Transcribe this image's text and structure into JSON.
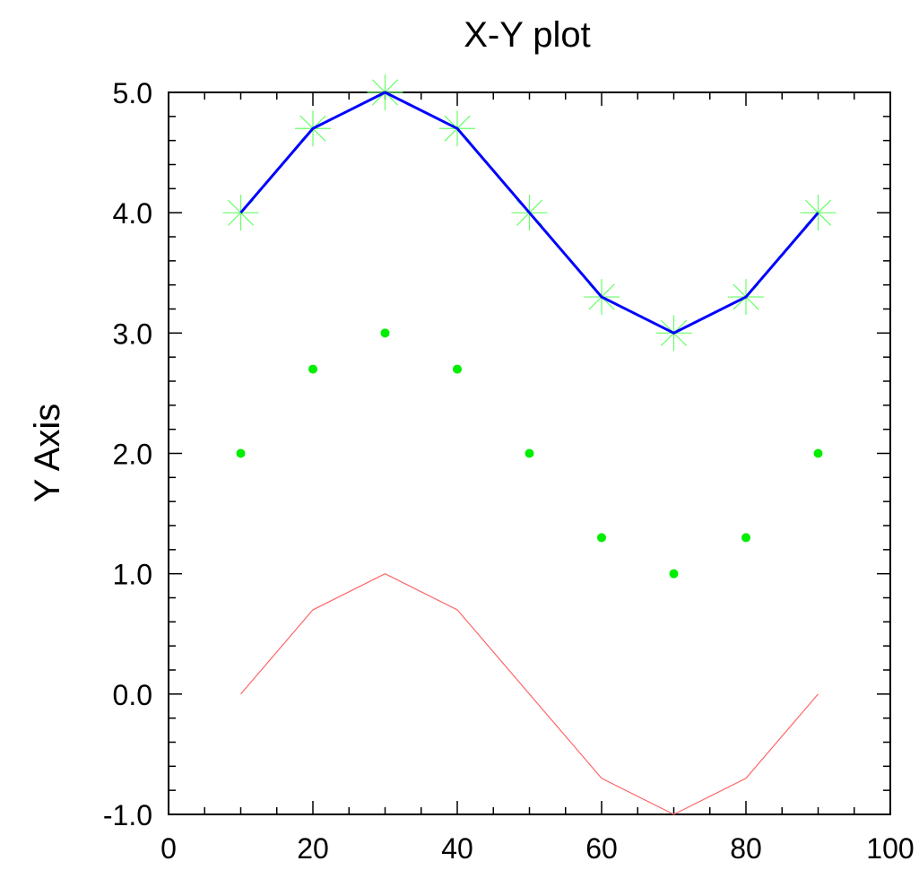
{
  "chart_data": {
    "type": "line",
    "title": "X-Y plot",
    "xlabel": "",
    "ylabel": "Y Axis",
    "xlim": [
      0,
      100
    ],
    "ylim": [
      -1.0,
      5.0
    ],
    "xticks": [
      0,
      20,
      40,
      60,
      80,
      100
    ],
    "xtick_labels": [
      "0",
      "20",
      "40",
      "60",
      "80",
      "100"
    ],
    "yticks": [
      -1.0,
      0.0,
      1.0,
      2.0,
      3.0,
      4.0,
      5.0
    ],
    "ytick_labels": [
      "-1.0",
      "0.0",
      "1.0",
      "2.0",
      "3.0",
      "4.0",
      "5.0"
    ],
    "grid": false,
    "x": [
      10,
      20,
      30,
      40,
      50,
      60,
      70,
      80,
      90
    ],
    "series": [
      {
        "values": [
          4.0,
          4.7,
          5.0,
          4.7,
          4.0,
          3.3,
          3.0,
          3.3,
          4.0
        ],
        "style": "line-with-asterisk-markers",
        "color": "#0000ff",
        "marker_color": "#66ff66"
      },
      {
        "values": [
          2.0,
          2.7,
          3.0,
          2.7,
          2.0,
          1.3,
          1.0,
          1.3,
          2.0
        ],
        "style": "dots",
        "color": "#00ee00"
      },
      {
        "values": [
          0.0,
          0.7,
          1.0,
          0.7,
          0.0,
          -0.7,
          -1.0,
          -0.7,
          0.0
        ],
        "style": "thin-line",
        "color": "#ff6666"
      }
    ]
  }
}
